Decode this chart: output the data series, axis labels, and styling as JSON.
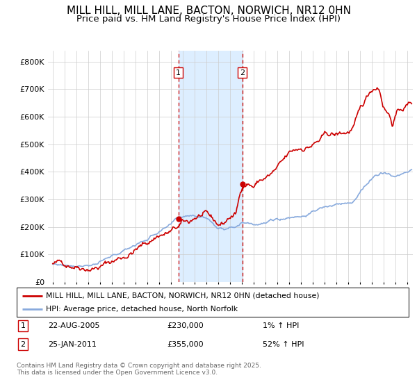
{
  "title": "MILL HILL, MILL LANE, BACTON, NORWICH, NR12 0HN",
  "subtitle": "Price paid vs. HM Land Registry's House Price Index (HPI)",
  "title_fontsize": 11,
  "subtitle_fontsize": 9.5,
  "ylabel_ticks": [
    "£0",
    "£100K",
    "£200K",
    "£300K",
    "£400K",
    "£500K",
    "£600K",
    "£700K",
    "£800K"
  ],
  "ytick_values": [
    0,
    100000,
    200000,
    300000,
    400000,
    500000,
    600000,
    700000,
    800000
  ],
  "ylim": [
    0,
    840000
  ],
  "xlim_start": 1994.6,
  "xlim_end": 2025.5,
  "xtick_years": [
    1995,
    1996,
    1997,
    1998,
    1999,
    2000,
    2001,
    2002,
    2003,
    2004,
    2005,
    2006,
    2007,
    2008,
    2009,
    2010,
    2011,
    2012,
    2013,
    2014,
    2015,
    2016,
    2017,
    2018,
    2019,
    2020,
    2021,
    2022,
    2023,
    2024,
    2025
  ],
  "red_color": "#cc0000",
  "blue_color": "#88aadd",
  "shaded_region_start": 2005.64,
  "shaded_region_end": 2011.07,
  "shaded_color": "#ddeeff",
  "vline1_x": 2005.64,
  "vline2_x": 2011.07,
  "marker1_x": 2005.64,
  "marker1_y": 230000,
  "marker2_x": 2011.07,
  "marker2_y": 355000,
  "legend_line1": "MILL HILL, MILL LANE, BACTON, NORWICH, NR12 0HN (detached house)",
  "legend_line2": "HPI: Average price, detached house, North Norfolk",
  "table_row1": [
    "1",
    "22-AUG-2005",
    "£230,000",
    "1% ↑ HPI"
  ],
  "table_row2": [
    "2",
    "25-JAN-2011",
    "£355,000",
    "52% ↑ HPI"
  ],
  "footer": "Contains HM Land Registry data © Crown copyright and database right 2025.\nThis data is licensed under the Open Government Licence v3.0."
}
